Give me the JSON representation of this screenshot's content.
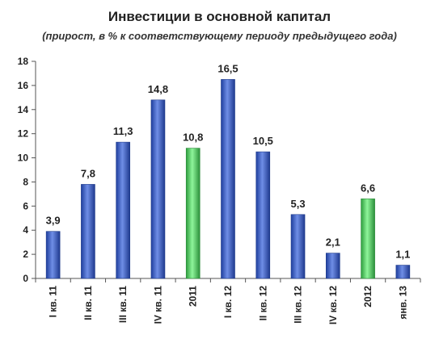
{
  "chart_data": {
    "type": "bar",
    "title": "Инвестиции в основной капитал",
    "subtitle": "(прирост, в % к соответствующему периоду предыдущего года)",
    "categories": [
      "I кв. 11",
      "II кв. 11",
      "III кв. 11",
      "IV кв. 11",
      "2011",
      "I кв. 12",
      "II кв. 12",
      "III кв. 12",
      "IV кв. 12",
      "2012",
      "янв. 13"
    ],
    "values": [
      3.9,
      7.8,
      11.3,
      14.8,
      10.8,
      16.5,
      10.5,
      5.3,
      2.1,
      6.6,
      1.1
    ],
    "value_labels": [
      "3,9",
      "7,8",
      "11,3",
      "14,8",
      "10,8",
      "16,5",
      "10,5",
      "5,3",
      "2,1",
      "6,6",
      "1,1"
    ],
    "bar_kinds": [
      "quarter",
      "quarter",
      "quarter",
      "quarter",
      "year",
      "quarter",
      "quarter",
      "quarter",
      "quarter",
      "year",
      "quarter"
    ],
    "ylim": [
      0,
      18
    ],
    "yticks": [
      0,
      2,
      4,
      6,
      8,
      10,
      12,
      14,
      16,
      18
    ],
    "xlabel": "",
    "ylabel": "",
    "grid": false,
    "colors": {
      "quarter": "#3b5fc4",
      "year": "#4fcf62",
      "axis": "#555555"
    }
  }
}
